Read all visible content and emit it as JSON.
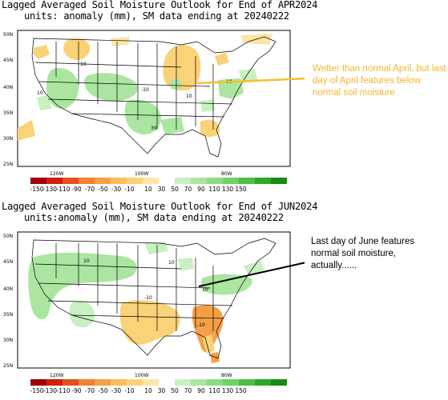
{
  "top_panel": {
    "title": "Lagged Averaged Soil Moisture Outlook for End of APR2024",
    "subtitle": "units: anomaly (mm), SM data ending at 20240222",
    "lat_labels": [
      "50N",
      "45N",
      "40N",
      "35N",
      "30N",
      "25N"
    ],
    "lon_labels": [
      "120W",
      "100W",
      "80W"
    ],
    "contour_labels": [
      "10",
      "10",
      "-10",
      "10",
      "30",
      "10"
    ],
    "annotation": "Wetter than normal April, but last day of April features below normal soil moisture"
  },
  "bottom_panel": {
    "title": "Lagged Averaged Soil Moisture Outlook for End of JUN2024",
    "subtitle": "units:anomaly (mm), SM data ending at 20240222",
    "lat_labels": [
      "50N",
      "45N",
      "40N",
      "35N",
      "30N",
      "25N"
    ],
    "lon_labels": [
      "120W",
      "100W",
      "80W"
    ],
    "contour_labels": [
      "10",
      "10",
      "-10",
      "10",
      "-10"
    ],
    "annotation": "Last day of June features normal soil moisture, actually......"
  },
  "color_scale": {
    "labels": [
      "-150",
      "-130",
      "-110",
      "-90",
      "-70",
      "-50",
      "-30",
      "-10",
      "10",
      "30",
      "50",
      "70",
      "90",
      "110",
      "130",
      "150"
    ],
    "colors": [
      "#a0000a",
      "#d21e0a",
      "#e6501e",
      "#f08232",
      "#f5a046",
      "#f8be5a",
      "#fad278",
      "#fde6a5",
      "#ffffff",
      "#c8f0c0",
      "#aae6a0",
      "#8cdc82",
      "#6ed264",
      "#4cc046",
      "#2ea82a",
      "#148c14"
    ]
  },
  "colors": {
    "dry": "#fad278",
    "wet": "#aae6a0",
    "arrow_top": "#f5c030",
    "arrow_bottom": "#000000"
  }
}
